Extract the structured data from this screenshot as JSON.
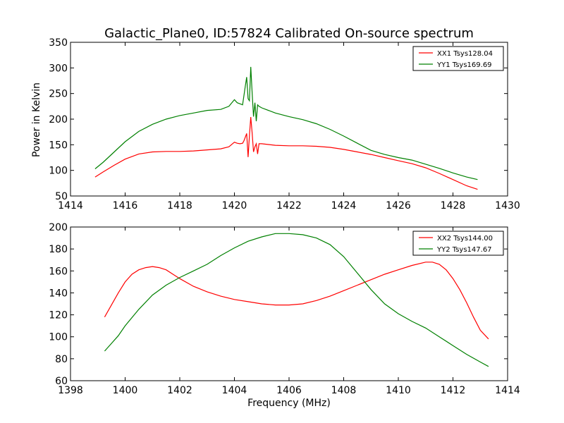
{
  "figure": {
    "title": "Galactic_Plane0, ID:57824 Calibrated On-source spectrum",
    "xlabel": "Frequency (MHz)",
    "ylabel": "Power in Kelvin"
  },
  "chart_data": [
    {
      "type": "line",
      "xlim": [
        1414,
        1430
      ],
      "ylim": [
        50,
        350
      ],
      "xticks": [
        1414,
        1416,
        1418,
        1420,
        1422,
        1424,
        1426,
        1428,
        1430
      ],
      "yticks": [
        50,
        100,
        150,
        200,
        250,
        300,
        350
      ],
      "legend_position": "top-right",
      "series": [
        {
          "name": "XX1 Tsys128.04",
          "color": "#ff0000",
          "x": [
            1414.9,
            1415.2,
            1415.6,
            1416.0,
            1416.5,
            1417.0,
            1417.5,
            1418.0,
            1418.5,
            1419.0,
            1419.5,
            1419.8,
            1420.0,
            1420.1,
            1420.2,
            1420.3,
            1420.35,
            1420.45,
            1420.5,
            1420.55,
            1420.6,
            1420.65,
            1420.7,
            1420.75,
            1420.8,
            1420.85,
            1420.9,
            1421.0,
            1421.5,
            1422.0,
            1422.5,
            1423.0,
            1423.5,
            1424.0,
            1424.5,
            1425.0,
            1425.5,
            1426.0,
            1426.5,
            1427.0,
            1427.5,
            1428.0,
            1428.5,
            1428.9
          ],
          "y": [
            87,
            97,
            110,
            122,
            132,
            136,
            137,
            137,
            138,
            140,
            142,
            146,
            155,
            153,
            152,
            153,
            158,
            172,
            126,
            168,
            204,
            172,
            136,
            146,
            152,
            132,
            152,
            152,
            149,
            148,
            148,
            147,
            145,
            141,
            136,
            131,
            125,
            119,
            113,
            105,
            94,
            82,
            70,
            63
          ]
        },
        {
          "name": "YY1 Tsys169.69",
          "color": "#008000",
          "x": [
            1414.9,
            1415.2,
            1415.6,
            1416.0,
            1416.5,
            1417.0,
            1417.5,
            1418.0,
            1418.5,
            1419.0,
            1419.5,
            1419.8,
            1420.0,
            1420.1,
            1420.2,
            1420.3,
            1420.4,
            1420.45,
            1420.5,
            1420.55,
            1420.6,
            1420.65,
            1420.7,
            1420.75,
            1420.8,
            1420.85,
            1420.9,
            1421.0,
            1421.5,
            1422.0,
            1422.5,
            1423.0,
            1423.5,
            1424.0,
            1424.5,
            1425.0,
            1425.5,
            1426.0,
            1426.5,
            1427.0,
            1427.5,
            1428.0,
            1428.5,
            1428.9
          ],
          "y": [
            103,
            116,
            136,
            156,
            176,
            190,
            200,
            207,
            212,
            217,
            219,
            225,
            238,
            232,
            230,
            228,
            265,
            282,
            240,
            236,
            302,
            250,
            205,
            232,
            196,
            228,
            225,
            222,
            212,
            205,
            199,
            191,
            180,
            167,
            153,
            139,
            131,
            125,
            120,
            112,
            104,
            95,
            87,
            82
          ]
        }
      ]
    },
    {
      "type": "line",
      "xlim": [
        1398,
        1414
      ],
      "ylim": [
        60,
        200
      ],
      "xticks": [
        1398,
        1400,
        1402,
        1404,
        1406,
        1408,
        1410,
        1412,
        1414
      ],
      "yticks": [
        60,
        80,
        100,
        120,
        140,
        160,
        180,
        200
      ],
      "legend_position": "top-right",
      "series": [
        {
          "name": "XX2 Tsys144.00",
          "color": "#ff0000",
          "x": [
            1399.25,
            1399.5,
            1399.75,
            1400.0,
            1400.25,
            1400.5,
            1400.75,
            1401.0,
            1401.25,
            1401.5,
            1401.75,
            1402.0,
            1402.5,
            1403.0,
            1403.5,
            1404.0,
            1404.5,
            1405.0,
            1405.5,
            1406.0,
            1406.5,
            1407.0,
            1407.5,
            1408.0,
            1408.5,
            1409.0,
            1409.5,
            1410.0,
            1410.5,
            1411.0,
            1411.25,
            1411.5,
            1411.75,
            1412.0,
            1412.25,
            1412.5,
            1412.75,
            1413.0,
            1413.3
          ],
          "y": [
            118,
            129,
            140,
            150,
            157,
            161,
            163,
            164,
            163,
            161,
            157,
            153,
            146,
            141,
            137,
            134,
            132,
            130,
            129,
            129,
            130,
            133,
            137,
            142,
            147,
            152,
            157,
            161,
            165,
            168,
            168,
            166,
            161,
            153,
            143,
            131,
            118,
            106,
            98
          ]
        },
        {
          "name": "YY2 Tsys147.67",
          "color": "#008000",
          "x": [
            1399.25,
            1399.5,
            1399.75,
            1400.0,
            1400.5,
            1401.0,
            1401.5,
            1402.0,
            1402.5,
            1403.0,
            1403.5,
            1404.0,
            1404.5,
            1405.0,
            1405.5,
            1406.0,
            1406.5,
            1407.0,
            1407.5,
            1408.0,
            1408.5,
            1409.0,
            1409.5,
            1410.0,
            1410.5,
            1411.0,
            1411.5,
            1412.0,
            1412.5,
            1413.0,
            1413.3
          ],
          "y": [
            87,
            94,
            101,
            110,
            125,
            138,
            147,
            154,
            160,
            166,
            174,
            181,
            187,
            191,
            194,
            194,
            193,
            190,
            184,
            173,
            158,
            143,
            130,
            121,
            114,
            108,
            100,
            92,
            84,
            77,
            73
          ]
        }
      ]
    }
  ]
}
